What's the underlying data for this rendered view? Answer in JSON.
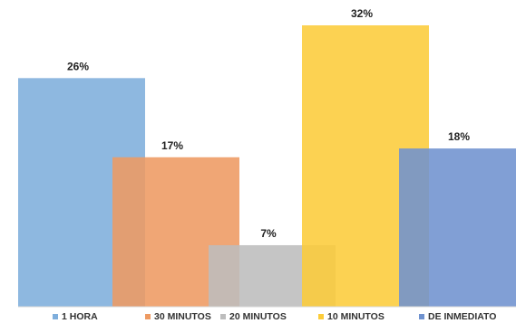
{
  "chart_data": {
    "type": "bar",
    "categories": [
      "1 HORA",
      "30 MINUTOS",
      "20 MINUTOS",
      "10 MINUTOS",
      "DE INMEDIATO"
    ],
    "values": [
      26,
      17,
      7,
      32,
      18
    ],
    "data_labels": [
      "26%",
      "17%",
      "7%",
      "32%",
      "18%"
    ],
    "unit": "%",
    "title": "",
    "xlabel": "",
    "ylabel": "",
    "ylim": [
      0,
      32
    ],
    "grid": false,
    "legend": "bottom",
    "overlapping_bars": true,
    "colors": [
      "#7eaedc",
      "#ee9a62",
      "#bdbdbd",
      "#fccc3a",
      "#6f92cf"
    ],
    "bar_opacity": 0.88
  }
}
